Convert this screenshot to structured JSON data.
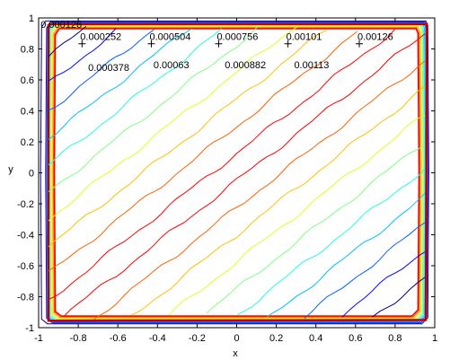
{
  "chart_data": {
    "type": "contour",
    "xlabel": "x",
    "ylabel": "y",
    "xlim": [
      -1,
      1
    ],
    "ylim": [
      -1,
      1
    ],
    "grid": false,
    "x_ticks": [
      "-1",
      "-0.8",
      "-0.6",
      "-0.4",
      "-0.2",
      "0",
      "0.2",
      "0.4",
      "0.6",
      "0.8",
      "1"
    ],
    "y_ticks": [
      "1",
      "0.8",
      "0.6",
      "0.4",
      "0.2",
      "0",
      "-0.2",
      "-0.4",
      "-0.6",
      "-0.8",
      "-1"
    ],
    "levels": [
      {
        "label": "0.000126",
        "value": 0.000126,
        "color": "#00008f",
        "label_x": -0.99,
        "label_y": 0.96,
        "marker": false
      },
      {
        "label": "0.000252",
        "value": 0.000252,
        "color": "#0000ff",
        "label_x": -0.79,
        "label_y": 0.88,
        "marker": true
      },
      {
        "label": "0.000378",
        "value": 0.000378,
        "color": "#0060ff",
        "label_x": -0.75,
        "label_y": 0.68,
        "marker": false
      },
      {
        "label": "0.000504",
        "value": 0.000504,
        "color": "#00c0ff",
        "label_x": -0.44,
        "label_y": 0.88,
        "marker": true
      },
      {
        "label": "0.00063",
        "value": 0.00063,
        "color": "#20ffdf",
        "label_x": -0.42,
        "label_y": 0.7,
        "marker": false
      },
      {
        "label": "0.000756",
        "value": 0.000756,
        "color": "#80ff80",
        "label_x": -0.1,
        "label_y": 0.88,
        "marker": true
      },
      {
        "label": "0.000882",
        "value": 0.000882,
        "color": "#dfff20",
        "label_x": -0.06,
        "label_y": 0.7,
        "marker": false
      },
      {
        "label": "0.00101",
        "value": 0.00101,
        "color": "#ffc000",
        "label_x": 0.25,
        "label_y": 0.88,
        "marker": true
      },
      {
        "label": "0.00113",
        "value": 0.00113,
        "color": "#ff6000",
        "label_x": 0.29,
        "label_y": 0.7,
        "marker": false
      },
      {
        "label": "0.00126",
        "value": 0.00126,
        "color": "#ff0000",
        "label_x": 0.61,
        "label_y": 0.88,
        "marker": true
      }
    ],
    "top_level_color": "#bf0000"
  }
}
